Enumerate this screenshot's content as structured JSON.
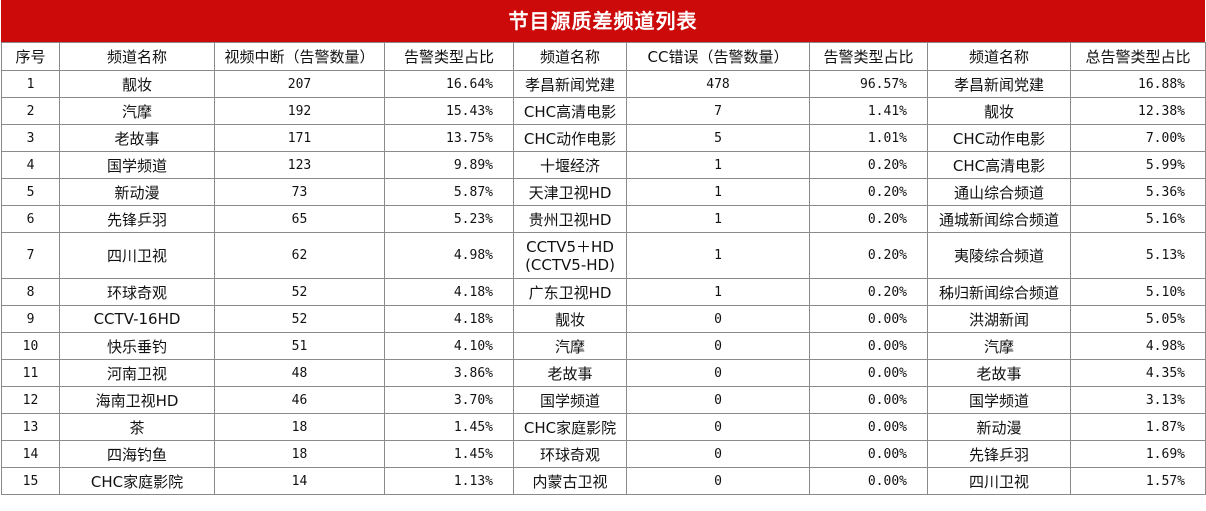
{
  "title": "节目源质差频道列表",
  "headers": [
    "序号",
    "频道名称",
    "视频中断（告警数量）",
    "告警类型占比",
    "频道名称",
    "CC错误（告警数量）",
    "告警类型占比",
    "频道名称",
    "总告警类型占比"
  ],
  "rows": [
    {
      "idx": "1",
      "vname": "靓妆",
      "vcount": "207",
      "vpct": "16.64%",
      "cname": "孝昌新闻党建",
      "ccount": "478",
      "cpct": "96.57%",
      "tname": "孝昌新闻党建",
      "tpct": "16.88%"
    },
    {
      "idx": "2",
      "vname": "汽摩",
      "vcount": "192",
      "vpct": "15.43%",
      "cname": "CHC高清电影",
      "ccount": "7",
      "cpct": "1.41%",
      "tname": "靓妆",
      "tpct": "12.38%"
    },
    {
      "idx": "3",
      "vname": "老故事",
      "vcount": "171",
      "vpct": "13.75%",
      "cname": "CHC动作电影",
      "ccount": "5",
      "cpct": "1.01%",
      "tname": "CHC动作电影",
      "tpct": "7.00%"
    },
    {
      "idx": "4",
      "vname": "国学频道",
      "vcount": "123",
      "vpct": "9.89%",
      "cname": "十堰经济",
      "ccount": "1",
      "cpct": "0.20%",
      "tname": "CHC高清电影",
      "tpct": "5.99%"
    },
    {
      "idx": "5",
      "vname": "新动漫",
      "vcount": "73",
      "vpct": "5.87%",
      "cname": "天津卫视HD",
      "ccount": "1",
      "cpct": "0.20%",
      "tname": "通山综合频道",
      "tpct": "5.36%"
    },
    {
      "idx": "6",
      "vname": "先锋乒羽",
      "vcount": "65",
      "vpct": "5.23%",
      "cname": "贵州卫视HD",
      "ccount": "1",
      "cpct": "0.20%",
      "tname": "通城新闻综合频道",
      "tpct": "5.16%"
    },
    {
      "idx": "7",
      "vname": "四川卫视",
      "vcount": "62",
      "vpct": "4.98%",
      "cname": "CCTV5＋HD (CCTV5-HD)",
      "ccount": "1",
      "cpct": "0.20%",
      "tname": "夷陵综合频道",
      "tpct": "5.13%"
    },
    {
      "idx": "8",
      "vname": "环球奇观",
      "vcount": "52",
      "vpct": "4.18%",
      "cname": "广东卫视HD",
      "ccount": "1",
      "cpct": "0.20%",
      "tname": "秭归新闻综合频道",
      "tpct": "5.10%"
    },
    {
      "idx": "9",
      "vname": "CCTV-16HD",
      "vcount": "52",
      "vpct": "4.18%",
      "cname": "靓妆",
      "ccount": "0",
      "cpct": "0.00%",
      "tname": "洪湖新闻",
      "tpct": "5.05%"
    },
    {
      "idx": "10",
      "vname": "快乐垂钓",
      "vcount": "51",
      "vpct": "4.10%",
      "cname": "汽摩",
      "ccount": "0",
      "cpct": "0.00%",
      "tname": "汽摩",
      "tpct": "4.98%"
    },
    {
      "idx": "11",
      "vname": "河南卫视",
      "vcount": "48",
      "vpct": "3.86%",
      "cname": "老故事",
      "ccount": "0",
      "cpct": "0.00%",
      "tname": "老故事",
      "tpct": "4.35%"
    },
    {
      "idx": "12",
      "vname": "海南卫视HD",
      "vcount": "46",
      "vpct": "3.70%",
      "cname": "国学频道",
      "ccount": "0",
      "cpct": "0.00%",
      "tname": "国学频道",
      "tpct": "3.13%"
    },
    {
      "idx": "13",
      "vname": "茶",
      "vcount": "18",
      "vpct": "1.45%",
      "cname": "CHC家庭影院",
      "ccount": "0",
      "cpct": "0.00%",
      "tname": "新动漫",
      "tpct": "1.87%"
    },
    {
      "idx": "14",
      "vname": "四海钓鱼",
      "vcount": "18",
      "vpct": "1.45%",
      "cname": "环球奇观",
      "ccount": "0",
      "cpct": "0.00%",
      "tname": "先锋乒羽",
      "tpct": "1.69%"
    },
    {
      "idx": "15",
      "vname": "CHC家庭影院",
      "vcount": "14",
      "vpct": "1.13%",
      "cname": "内蒙古卫视",
      "ccount": "0",
      "cpct": "0.00%",
      "tname": "四川卫视",
      "tpct": "1.57%"
    }
  ],
  "colors": {
    "title_bg": "#cc0a0a",
    "title_text": "#ffffff",
    "border": "#8a8a8a"
  }
}
